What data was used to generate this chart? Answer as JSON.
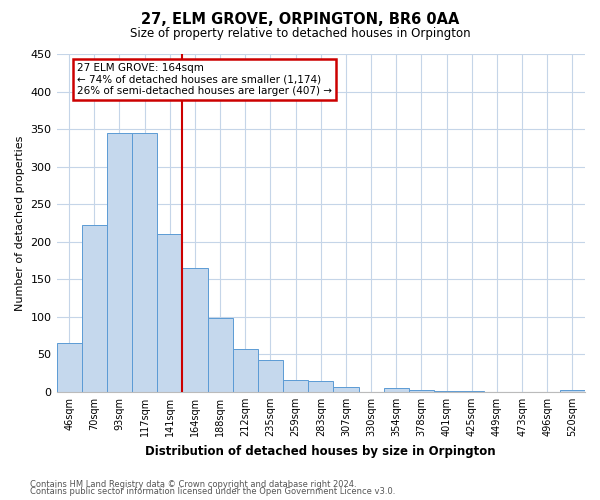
{
  "title": "27, ELM GROVE, ORPINGTON, BR6 0AA",
  "subtitle": "Size of property relative to detached houses in Orpington",
  "xlabel": "Distribution of detached houses by size in Orpington",
  "ylabel": "Number of detached properties",
  "bar_labels": [
    "46sqm",
    "70sqm",
    "93sqm",
    "117sqm",
    "141sqm",
    "164sqm",
    "188sqm",
    "212sqm",
    "235sqm",
    "259sqm",
    "283sqm",
    "307sqm",
    "330sqm",
    "354sqm",
    "378sqm",
    "401sqm",
    "425sqm",
    "449sqm",
    "473sqm",
    "496sqm",
    "520sqm"
  ],
  "bar_values": [
    65,
    222,
    345,
    345,
    210,
    165,
    98,
    57,
    43,
    16,
    14,
    7,
    0,
    5,
    2,
    1,
    1,
    0,
    0,
    0,
    2
  ],
  "bar_color": "#c5d8ed",
  "bar_edge_color": "#5b9bd5",
  "vline_index": 5,
  "vline_color": "#cc0000",
  "annot_line1": "27 ELM GROVE: 164sqm",
  "annot_line2": "← 74% of detached houses are smaller (1,174)",
  "annot_line3": "26% of semi-detached houses are larger (407) →",
  "annotation_box_color": "#ffffff",
  "annotation_box_edge": "#cc0000",
  "ylim": [
    0,
    450
  ],
  "yticks": [
    0,
    50,
    100,
    150,
    200,
    250,
    300,
    350,
    400,
    450
  ],
  "footer_line1": "Contains HM Land Registry data © Crown copyright and database right 2024.",
  "footer_line2": "Contains public sector information licensed under the Open Government Licence v3.0.",
  "bg_color": "#ffffff",
  "grid_color": "#c5d5e8"
}
